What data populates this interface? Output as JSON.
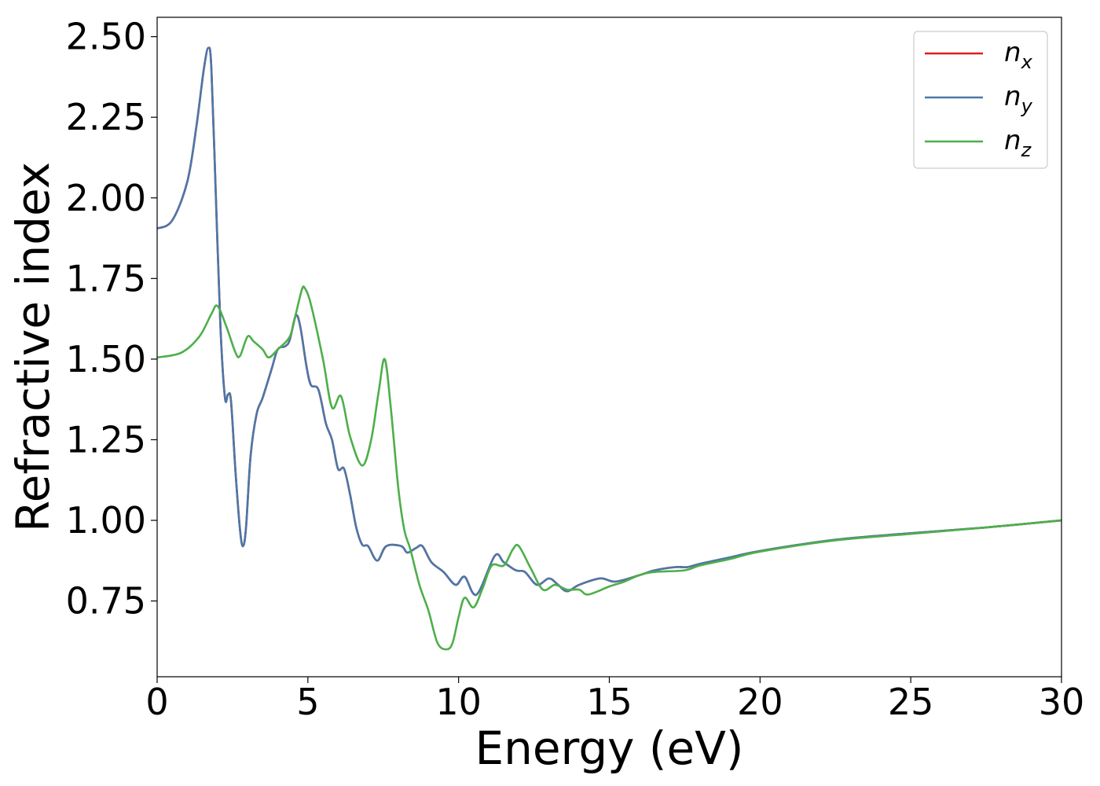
{
  "chart_data": {
    "type": "line",
    "xlabel": "Energy (eV)",
    "ylabel": "Refractive index",
    "xlim": [
      0,
      30
    ],
    "ylim": [
      0.515,
      2.56
    ],
    "xticks": [
      "0",
      "5",
      "10",
      "15",
      "20",
      "25",
      "30"
    ],
    "yticks": [
      "0.75",
      "1.00",
      "1.25",
      "1.50",
      "1.75",
      "2.00",
      "2.25",
      "2.50"
    ],
    "grid": false,
    "legend_position": "top-right",
    "series": [
      {
        "name": "n",
        "subscript": "x",
        "color": "#e41a1c",
        "points": [
          [
            0,
            1.905
          ],
          [
            0.5,
            1.93
          ],
          [
            1.0,
            2.05
          ],
          [
            1.3,
            2.22
          ],
          [
            1.55,
            2.4
          ],
          [
            1.7,
            2.465
          ],
          [
            1.8,
            2.4
          ],
          [
            1.95,
            2.0
          ],
          [
            2.1,
            1.6
          ],
          [
            2.25,
            1.38
          ],
          [
            2.35,
            1.39
          ],
          [
            2.45,
            1.37
          ],
          [
            2.6,
            1.15
          ],
          [
            2.75,
            0.97
          ],
          [
            2.85,
            0.92
          ],
          [
            2.95,
            0.98
          ],
          [
            3.1,
            1.2
          ],
          [
            3.3,
            1.33
          ],
          [
            3.5,
            1.38
          ],
          [
            3.8,
            1.47
          ],
          [
            4.0,
            1.53
          ],
          [
            4.25,
            1.54
          ],
          [
            4.4,
            1.56
          ],
          [
            4.6,
            1.635
          ],
          [
            4.75,
            1.6
          ],
          [
            4.95,
            1.48
          ],
          [
            5.1,
            1.42
          ],
          [
            5.35,
            1.405
          ],
          [
            5.6,
            1.3
          ],
          [
            5.8,
            1.25
          ],
          [
            6.0,
            1.16
          ],
          [
            6.2,
            1.16
          ],
          [
            6.4,
            1.08
          ],
          [
            6.6,
            0.98
          ],
          [
            6.8,
            0.925
          ],
          [
            7.0,
            0.92
          ],
          [
            7.3,
            0.875
          ],
          [
            7.6,
            0.92
          ],
          [
            8.1,
            0.92
          ],
          [
            8.3,
            0.9
          ],
          [
            8.6,
            0.915
          ],
          [
            8.8,
            0.92
          ],
          [
            9.1,
            0.87
          ],
          [
            9.5,
            0.84
          ],
          [
            9.9,
            0.8
          ],
          [
            10.2,
            0.825
          ],
          [
            10.6,
            0.77
          ],
          [
            11.2,
            0.89
          ],
          [
            11.5,
            0.87
          ],
          [
            11.9,
            0.845
          ],
          [
            12.2,
            0.84
          ],
          [
            12.6,
            0.8
          ],
          [
            13.0,
            0.82
          ],
          [
            13.3,
            0.8
          ],
          [
            13.6,
            0.78
          ],
          [
            14.0,
            0.8
          ],
          [
            14.7,
            0.82
          ],
          [
            15.2,
            0.81
          ],
          [
            16.0,
            0.83
          ],
          [
            16.5,
            0.845
          ],
          [
            17.2,
            0.855
          ],
          [
            17.6,
            0.855
          ],
          [
            18.0,
            0.865
          ],
          [
            19.0,
            0.885
          ],
          [
            20.0,
            0.905
          ],
          [
            22.5,
            0.94
          ],
          [
            25.0,
            0.96
          ],
          [
            27.5,
            0.978
          ],
          [
            30.0,
            1.0
          ]
        ]
      },
      {
        "name": "n",
        "subscript": "y",
        "color": "#4a78a8",
        "points": [
          [
            0,
            1.905
          ],
          [
            0.5,
            1.93
          ],
          [
            1.0,
            2.05
          ],
          [
            1.3,
            2.22
          ],
          [
            1.55,
            2.4
          ],
          [
            1.7,
            2.465
          ],
          [
            1.8,
            2.4
          ],
          [
            1.95,
            2.0
          ],
          [
            2.1,
            1.6
          ],
          [
            2.25,
            1.38
          ],
          [
            2.35,
            1.39
          ],
          [
            2.45,
            1.37
          ],
          [
            2.6,
            1.15
          ],
          [
            2.75,
            0.97
          ],
          [
            2.85,
            0.92
          ],
          [
            2.95,
            0.98
          ],
          [
            3.1,
            1.2
          ],
          [
            3.3,
            1.33
          ],
          [
            3.5,
            1.38
          ],
          [
            3.8,
            1.47
          ],
          [
            4.0,
            1.53
          ],
          [
            4.25,
            1.54
          ],
          [
            4.4,
            1.56
          ],
          [
            4.6,
            1.635
          ],
          [
            4.75,
            1.6
          ],
          [
            4.95,
            1.48
          ],
          [
            5.1,
            1.42
          ],
          [
            5.35,
            1.405
          ],
          [
            5.6,
            1.3
          ],
          [
            5.8,
            1.25
          ],
          [
            6.0,
            1.16
          ],
          [
            6.2,
            1.16
          ],
          [
            6.4,
            1.08
          ],
          [
            6.6,
            0.98
          ],
          [
            6.8,
            0.925
          ],
          [
            7.0,
            0.92
          ],
          [
            7.3,
            0.875
          ],
          [
            7.6,
            0.92
          ],
          [
            8.1,
            0.92
          ],
          [
            8.3,
            0.9
          ],
          [
            8.6,
            0.915
          ],
          [
            8.8,
            0.92
          ],
          [
            9.1,
            0.87
          ],
          [
            9.5,
            0.84
          ],
          [
            9.9,
            0.8
          ],
          [
            10.2,
            0.825
          ],
          [
            10.6,
            0.77
          ],
          [
            11.2,
            0.89
          ],
          [
            11.5,
            0.87
          ],
          [
            11.9,
            0.845
          ],
          [
            12.2,
            0.84
          ],
          [
            12.6,
            0.8
          ],
          [
            13.0,
            0.82
          ],
          [
            13.3,
            0.8
          ],
          [
            13.6,
            0.78
          ],
          [
            14.0,
            0.8
          ],
          [
            14.7,
            0.82
          ],
          [
            15.2,
            0.81
          ],
          [
            16.0,
            0.83
          ],
          [
            16.5,
            0.845
          ],
          [
            17.2,
            0.855
          ],
          [
            17.6,
            0.855
          ],
          [
            18.0,
            0.865
          ],
          [
            19.0,
            0.885
          ],
          [
            20.0,
            0.905
          ],
          [
            22.5,
            0.94
          ],
          [
            25.0,
            0.96
          ],
          [
            27.5,
            0.978
          ],
          [
            30.0,
            1.0
          ]
        ]
      },
      {
        "name": "n",
        "subscript": "z",
        "color": "#4daf4a",
        "points": [
          [
            0,
            1.505
          ],
          [
            0.8,
            1.52
          ],
          [
            1.4,
            1.57
          ],
          [
            1.8,
            1.64
          ],
          [
            2.0,
            1.665
          ],
          [
            2.3,
            1.6
          ],
          [
            2.6,
            1.52
          ],
          [
            2.75,
            1.51
          ],
          [
            3.0,
            1.57
          ],
          [
            3.2,
            1.555
          ],
          [
            3.5,
            1.53
          ],
          [
            3.7,
            1.505
          ],
          [
            4.0,
            1.53
          ],
          [
            4.4,
            1.57
          ],
          [
            4.6,
            1.64
          ],
          [
            4.8,
            1.715
          ],
          [
            4.9,
            1.72
          ],
          [
            5.1,
            1.67
          ],
          [
            5.5,
            1.5
          ],
          [
            5.8,
            1.35
          ],
          [
            6.1,
            1.385
          ],
          [
            6.4,
            1.26
          ],
          [
            6.8,
            1.17
          ],
          [
            7.1,
            1.25
          ],
          [
            7.35,
            1.4
          ],
          [
            7.55,
            1.5
          ],
          [
            7.75,
            1.35
          ],
          [
            8.0,
            1.1
          ],
          [
            8.2,
            0.97
          ],
          [
            8.4,
            0.91
          ],
          [
            8.7,
            0.8
          ],
          [
            9.0,
            0.72
          ],
          [
            9.3,
            0.62
          ],
          [
            9.6,
            0.6
          ],
          [
            9.8,
            0.62
          ],
          [
            10.0,
            0.7
          ],
          [
            10.2,
            0.76
          ],
          [
            10.5,
            0.73
          ],
          [
            10.8,
            0.79
          ],
          [
            11.1,
            0.86
          ],
          [
            11.5,
            0.86
          ],
          [
            11.8,
            0.91
          ],
          [
            12.0,
            0.92
          ],
          [
            12.4,
            0.85
          ],
          [
            12.8,
            0.785
          ],
          [
            13.2,
            0.8
          ],
          [
            13.6,
            0.785
          ],
          [
            14.0,
            0.785
          ],
          [
            14.3,
            0.77
          ],
          [
            15.0,
            0.795
          ],
          [
            15.5,
            0.81
          ],
          [
            16.0,
            0.83
          ],
          [
            16.5,
            0.84
          ],
          [
            17.5,
            0.845
          ],
          [
            18.0,
            0.86
          ],
          [
            19.0,
            0.88
          ],
          [
            20.0,
            0.903
          ],
          [
            22.5,
            0.938
          ],
          [
            25.0,
            0.958
          ],
          [
            27.5,
            0.978
          ],
          [
            30.0,
            1.0
          ]
        ]
      }
    ]
  }
}
